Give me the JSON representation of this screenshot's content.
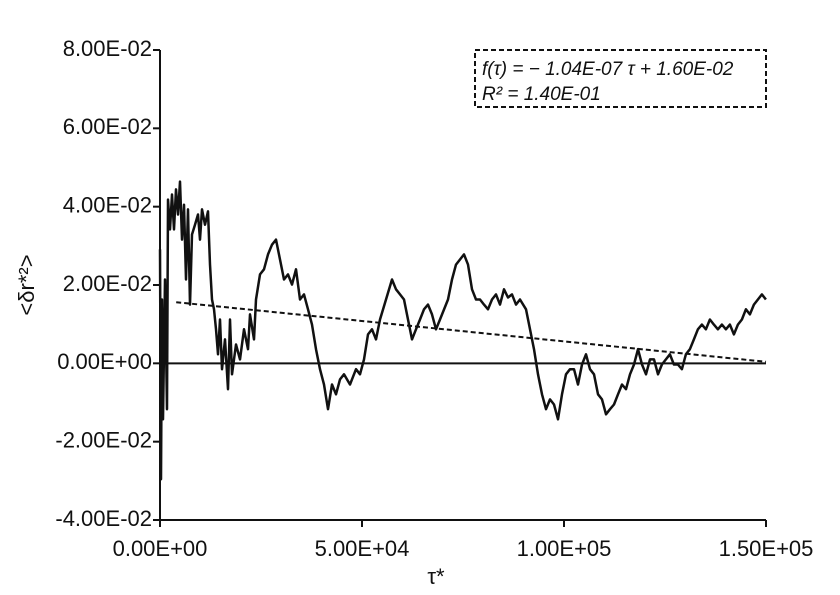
{
  "chart_data": {
    "type": "line",
    "x_label": "τ*",
    "y_label": "<δr*²>",
    "annotations": [
      "f(τ) = − 1.04E-07 τ + 1.60E-02",
      "R² = 1.40E-01"
    ],
    "xlim": [
      0,
      150000
    ],
    "ylim": [
      -0.04,
      0.08
    ],
    "xticks": [
      {
        "value": 0,
        "label": "0.00E+00"
      },
      {
        "value": 50000,
        "label": "5.00E+04"
      },
      {
        "value": 100000,
        "label": "1.00E+05"
      },
      {
        "value": 150000,
        "label": "1.50E+05"
      }
    ],
    "yticks": [
      {
        "value": -0.04,
        "label": "-4.00E-02"
      },
      {
        "value": -0.02,
        "label": "-2.00E-02"
      },
      {
        "value": 0,
        "label": "0.00E+00"
      },
      {
        "value": 0.02,
        "label": "2.00E-02"
      },
      {
        "value": 0.04,
        "label": "4.00E-02"
      },
      {
        "value": 0.06,
        "label": "6.00E-02"
      },
      {
        "value": 0.08,
        "label": "8.00E-02"
      }
    ],
    "color": "#111111",
    "x": [
      0,
      248,
      495,
      743,
      1238,
      1733,
      1980,
      2475,
      2970,
      3465,
      3960,
      4455,
      4950,
      5445,
      5940,
      6435,
      6930,
      7425,
      7920,
      8663,
      9405,
      9900,
      10395,
      11138,
      11880,
      12375,
      12870,
      13365,
      13860,
      14355,
      14850,
      15345,
      16088,
      16830,
      17325,
      17820,
      18810,
      19800,
      20790,
      21780,
      22275,
      23265,
      23760,
      24750,
      25740,
      26730,
      27720,
      28710,
      29700,
      30690,
      31680,
      32670,
      33660,
      34650,
      35640,
      36630,
      37620,
      38610,
      39600,
      40590,
      41580,
      42570,
      43560,
      44550,
      45540,
      47025,
      48510,
      49500,
      50490,
      51480,
      52470,
      53460,
      54450,
      55935,
      57420,
      58410,
      59400,
      60390,
      61380,
      62370,
      63360,
      64350,
      65340,
      66330,
      67320,
      68310,
      69300,
      71280,
      72270,
      73260,
      74250,
      75240,
      76230,
      77220,
      78210,
      79200,
      80190,
      81180,
      82170,
      83160,
      84150,
      85140,
      86130,
      87120,
      88110,
      89100,
      90585,
      91575,
      92565,
      93555,
      94545,
      95535,
      96525,
      97515,
      98505,
      99495,
      100485,
      101475,
      102465,
      103455,
      104445,
      105435,
      106425,
      107415,
      108405,
      109395,
      110385,
      111375,
      112365,
      113355,
      114345,
      115335,
      116325,
      117315,
      118305,
      119295,
      120285,
      121275,
      122265,
      123255,
      124245,
      125235,
      126225,
      127215,
      128205,
      129195,
      130185,
      131175,
      132165,
      133155,
      134145,
      135135,
      136125,
      137115,
      138105,
      139095,
      140085,
      141075,
      142065,
      143055,
      144045,
      145035,
      146025,
      147015,
      148005,
      148995,
      149985
    ],
    "values": [
      0.0291,
      -0.0296,
      0.0163,
      -0.0143,
      0.0214,
      -0.0117,
      0.0418,
      0.0342,
      0.0431,
      0.0342,
      0.0444,
      0.038,
      0.0464,
      0.0316,
      0.0405,
      0.0214,
      0.0393,
      0.015,
      0.0329,
      0.0354,
      0.038,
      0.0316,
      0.0393,
      0.0354,
      0.0388,
      0.0252,
      0.0163,
      0.0138,
      0.0087,
      0.0023,
      0.0112,
      -0.0015,
      0.0061,
      -0.0066,
      0.0112,
      -0.0028,
      0.0048,
      0.001,
      0.0087,
      0.0036,
      0.0125,
      0.0061,
      0.0163,
      0.0227,
      0.024,
      0.0278,
      0.0303,
      0.0316,
      0.0265,
      0.0214,
      0.0227,
      0.0201,
      0.024,
      0.0163,
      0.0176,
      0.0138,
      0.0099,
      0.0036,
      -0.0015,
      -0.0054,
      -0.0117,
      -0.0054,
      -0.0079,
      -0.0041,
      -0.0028,
      -0.0054,
      -0.0015,
      -0.0028,
      0.001,
      0.0074,
      0.0087,
      0.0061,
      0.0112,
      0.0163,
      0.0214,
      0.0189,
      0.0176,
      0.0163,
      0.0112,
      0.0061,
      0.0087,
      0.0112,
      0.0138,
      0.015,
      0.0125,
      0.0087,
      0.0112,
      0.0163,
      0.0214,
      0.0252,
      0.0265,
      0.0278,
      0.0252,
      0.0189,
      0.0163,
      0.0163,
      0.015,
      0.0138,
      0.0163,
      0.0176,
      0.015,
      0.0189,
      0.0168,
      0.0176,
      0.015,
      0.0163,
      0.0138,
      0.0087,
      0.0036,
      -0.0028,
      -0.0079,
      -0.0117,
      -0.0092,
      -0.0105,
      -0.0143,
      -0.0079,
      -0.0028,
      -0.0015,
      -0.0015,
      -0.0054,
      -0.0003,
      0.0023,
      -0.0015,
      -0.0028,
      -0.0079,
      -0.0092,
      -0.013,
      -0.0117,
      -0.0105,
      -0.0079,
      -0.0054,
      -0.0066,
      -0.0028,
      -0.0003,
      0.0036,
      -0.0003,
      -0.0028,
      0.001,
      0.001,
      -0.0028,
      -0.0003,
      0.001,
      0.0023,
      -0.0003,
      -0.0003,
      -0.0015,
      0.0023,
      0.0036,
      0.0061,
      0.0087,
      0.0099,
      0.0087,
      0.0112,
      0.0099,
      0.0087,
      0.0099,
      0.0087,
      0.0099,
      0.0074,
      0.0099,
      0.0112,
      0.0138,
      0.0125,
      0.015,
      0.0163,
      0.0176,
      0.0163
    ],
    "fit": {
      "x": [
        4000,
        150000
      ],
      "values": [
        0.0156,
        0.0004
      ]
    }
  }
}
